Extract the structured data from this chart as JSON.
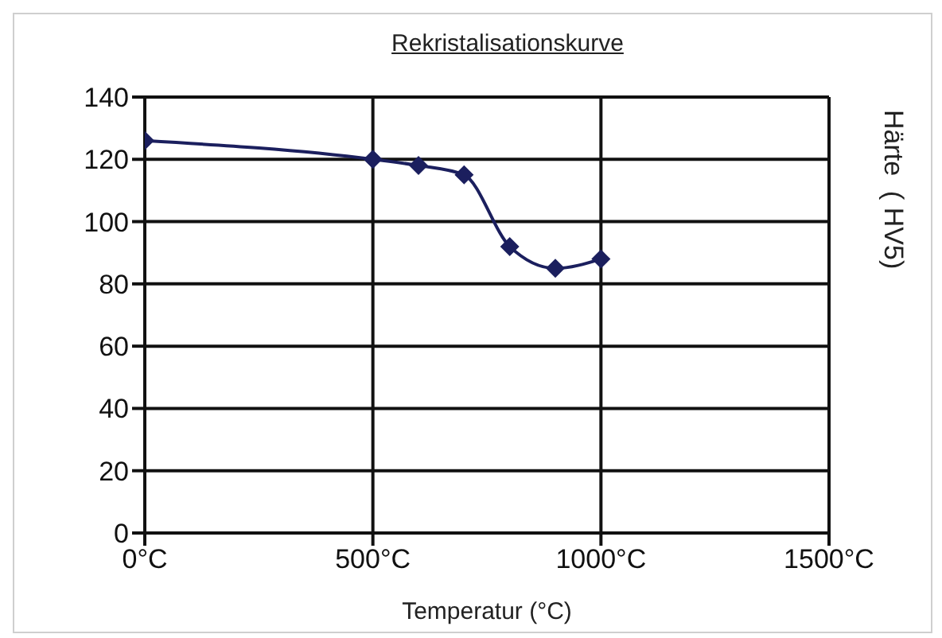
{
  "chart_data": {
    "type": "line",
    "title": "Rekristalisationskurve",
    "xlabel": "Temperatur (°C)",
    "ylabel": "Härte  ( HV5)",
    "x": [
      0,
      500,
      600,
      700,
      800,
      900,
      1000
    ],
    "series": [
      {
        "color": "#1b1f5e",
        "values": [
          126,
          120,
          118,
          115,
          92,
          85,
          88
        ]
      }
    ],
    "xlim": [
      0,
      1500
    ],
    "xticks": [
      {
        "value": 0,
        "label": "0°C"
      },
      {
        "value": 500,
        "label": "500°C"
      },
      {
        "value": 1000,
        "label": "1000°C"
      },
      {
        "value": 1500,
        "label": "1500°C"
      }
    ],
    "ylim": [
      0,
      140
    ],
    "yticks": [
      0,
      20,
      40,
      60,
      80,
      100,
      120,
      140
    ],
    "grid": true,
    "marker": "diamond",
    "line_style": "solid",
    "legend": false
  }
}
